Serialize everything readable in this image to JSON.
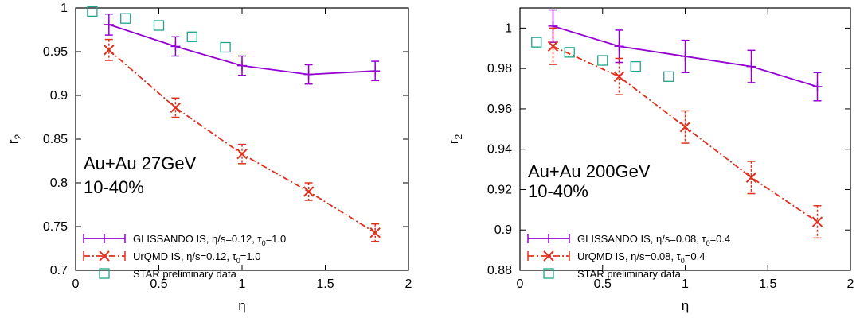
{
  "colors": {
    "glissando": "#9400d3",
    "urqmd": "#e0301e",
    "star": "#22a58c",
    "axis": "#000000"
  },
  "chart_data": [
    {
      "type": "line",
      "xlabel": "η",
      "ylabel": "r",
      "ylabel_sub": "2",
      "xlim": [
        0,
        2
      ],
      "ylim": [
        0.7,
        1.0
      ],
      "xticks": [
        0,
        0.5,
        1,
        1.5,
        2
      ],
      "xtick_labels": [
        "0",
        "0.5",
        "1",
        "1.5",
        "2"
      ],
      "yticks": [
        0.7,
        0.75,
        0.8,
        0.85,
        0.9,
        0.95,
        1.0
      ],
      "ytick_labels": [
        "0.7",
        "0.75",
        "0.8",
        "0.85",
        "0.9",
        "0.95",
        "1"
      ],
      "annotation_lines": [
        "Au+Au 27GeV",
        "10-40%"
      ],
      "legend_position": "bottom-left",
      "series": [
        {
          "name": "GLISSANDO IS, η/s=0.12, τ0=1.0",
          "legend_parts": [
            "GLISSANDO IS, η/s=0.12, τ",
            "0",
            "=1.0"
          ],
          "style": "solid-errorbars",
          "x": [
            0.2,
            0.6,
            1.0,
            1.4,
            1.8
          ],
          "y": [
            0.981,
            0.956,
            0.934,
            0.924,
            0.928
          ],
          "err": [
            0.012,
            0.011,
            0.011,
            0.011,
            0.011
          ]
        },
        {
          "name": "UrQMD IS, η/s=0.12, τ0=1.0",
          "legend_parts": [
            "UrQMD IS, η/s=0.12, τ",
            "0",
            "=1.0"
          ],
          "style": "dashdot-x",
          "x": [
            0.2,
            0.6,
            1.0,
            1.4,
            1.8
          ],
          "y": [
            0.952,
            0.886,
            0.833,
            0.79,
            0.743
          ],
          "err": [
            0.012,
            0.011,
            0.011,
            0.01,
            0.01
          ]
        },
        {
          "name": "STAR preliminary data",
          "legend_parts": [
            "STAR preliminary data",
            "",
            ""
          ],
          "style": "open-square",
          "x": [
            0.1,
            0.3,
            0.5,
            0.7,
            0.9
          ],
          "y": [
            0.996,
            0.988,
            0.98,
            0.967,
            0.955
          ],
          "err": []
        }
      ]
    },
    {
      "type": "line",
      "xlabel": "η",
      "ylabel": "r",
      "ylabel_sub": "2",
      "xlim": [
        0,
        2
      ],
      "ylim": [
        0.88,
        1.01
      ],
      "xticks": [
        0,
        0.5,
        1,
        1.5,
        2
      ],
      "xtick_labels": [
        "0",
        "0.5",
        "1",
        "1.5",
        "2"
      ],
      "yticks": [
        0.88,
        0.9,
        0.92,
        0.94,
        0.96,
        0.98,
        1.0
      ],
      "ytick_labels": [
        "0.88",
        "0.9",
        "0.92",
        "0.94",
        "0.96",
        "0.98",
        "1"
      ],
      "annotation_lines": [
        "Au+Au 200GeV",
        "10-40%"
      ],
      "legend_position": "bottom-left",
      "series": [
        {
          "name": "GLISSANDO IS, η/s=0.08, τ0=0.4",
          "legend_parts": [
            "GLISSANDO IS, η/s=0.08, τ",
            "0",
            "=0.4"
          ],
          "style": "solid-errorbars",
          "x": [
            0.2,
            0.6,
            1.0,
            1.4,
            1.8
          ],
          "y": [
            1.001,
            0.991,
            0.986,
            0.981,
            0.971
          ],
          "err": [
            0.008,
            0.008,
            0.008,
            0.008,
            0.007
          ]
        },
        {
          "name": "UrQMD IS, η/s=0.08, τ0=0.4",
          "legend_parts": [
            "UrQMD IS, η/s=0.08, τ",
            "0",
            "=0.4"
          ],
          "style": "dashdot-x",
          "x": [
            0.2,
            0.6,
            1.0,
            1.4,
            1.8
          ],
          "y": [
            0.991,
            0.976,
            0.951,
            0.926,
            0.904
          ],
          "err": [
            0.009,
            0.009,
            0.008,
            0.008,
            0.008
          ]
        },
        {
          "name": "STAR preliminary data",
          "legend_parts": [
            "STAR preliminary data",
            "",
            ""
          ],
          "style": "open-square",
          "x": [
            0.1,
            0.3,
            0.5,
            0.7,
            0.9
          ],
          "y": [
            0.993,
            0.988,
            0.984,
            0.981,
            0.976
          ],
          "err": []
        }
      ]
    }
  ]
}
